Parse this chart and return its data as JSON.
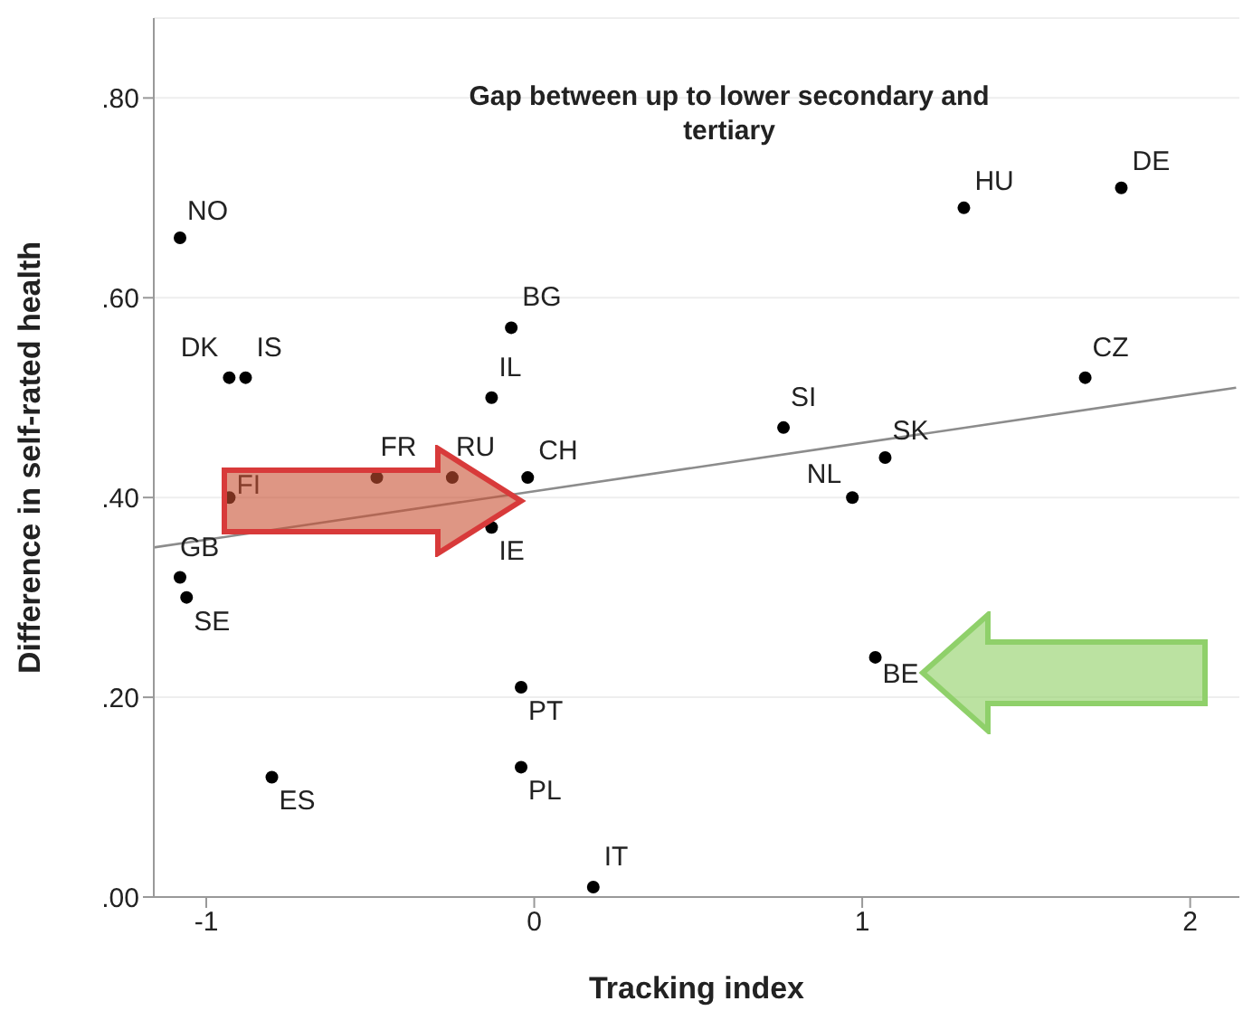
{
  "chart_data": {
    "type": "scatter",
    "title": "Gap between up to lower secondary and tertiary",
    "xlabel": "Tracking index",
    "ylabel": "Difference in self-rated health",
    "series": [
      {
        "color": "#000000",
        "x": [
          -1.08,
          -0.93,
          -0.88,
          -0.93,
          -0.48,
          -0.25,
          -0.02,
          -0.07,
          -0.13,
          -0.13,
          -1.08,
          -1.06,
          -0.04,
          -0.04,
          -0.8,
          0.18,
          1.31,
          1.79,
          1.68,
          0.76,
          1.07,
          0.97,
          1.04
        ],
        "values": [
          0.66,
          0.52,
          0.52,
          0.4,
          0.42,
          0.42,
          0.42,
          0.57,
          0.5,
          0.37,
          0.32,
          0.3,
          0.21,
          0.13,
          0.12,
          0.01,
          0.69,
          0.71,
          0.52,
          0.47,
          0.44,
          0.4,
          0.24
        ]
      },
      {
        "type": "line",
        "marker": "none",
        "color": "#8c8c8c",
        "x": [
          -1.16,
          2.14
        ],
        "values": [
          0.35,
          0.51
        ]
      }
    ],
    "annotations": [
      {
        "text": "NO",
        "x": -1.08,
        "y": 0.66
      },
      {
        "text": "DK",
        "x": -0.93,
        "y": 0.52
      },
      {
        "text": "IS",
        "x": -0.88,
        "y": 0.52
      },
      {
        "text": "FI",
        "x": -0.93,
        "y": 0.4
      },
      {
        "text": "FR",
        "x": -0.48,
        "y": 0.42
      },
      {
        "text": "RU",
        "x": -0.25,
        "y": 0.42
      },
      {
        "text": "CH",
        "x": -0.02,
        "y": 0.42
      },
      {
        "text": "BG",
        "x": -0.07,
        "y": 0.57
      },
      {
        "text": "IL",
        "x": -0.13,
        "y": 0.5
      },
      {
        "text": "IE",
        "x": -0.13,
        "y": 0.37
      },
      {
        "text": "GB",
        "x": -1.08,
        "y": 0.32
      },
      {
        "text": "SE",
        "x": -1.06,
        "y": 0.3
      },
      {
        "text": "PT",
        "x": -0.04,
        "y": 0.21
      },
      {
        "text": "PL",
        "x": -0.04,
        "y": 0.13
      },
      {
        "text": "ES",
        "x": -0.8,
        "y": 0.12
      },
      {
        "text": "IT",
        "x": 0.18,
        "y": 0.01
      },
      {
        "text": "HU",
        "x": 1.31,
        "y": 0.69
      },
      {
        "text": "DE",
        "x": 1.79,
        "y": 0.71
      },
      {
        "text": "CZ",
        "x": 1.68,
        "y": 0.52
      },
      {
        "text": "SI",
        "x": 0.76,
        "y": 0.47
      },
      {
        "text": "SK",
        "x": 1.07,
        "y": 0.44
      },
      {
        "text": "NL",
        "x": 0.97,
        "y": 0.4
      },
      {
        "text": "BE",
        "x": 1.04,
        "y": 0.24
      }
    ],
    "xlim": [
      -1.16,
      2.15
    ],
    "ylim": [
      0,
      0.88
    ],
    "xticks": [
      -1,
      0,
      1,
      2
    ],
    "yticks": [
      {
        "value": 0,
        "label": ".00"
      },
      {
        "value": 0.2,
        "label": ".20"
      },
      {
        "value": 0.4,
        "label": ".40"
      },
      {
        "value": 0.6,
        "label": ".60"
      },
      {
        "value": 0.8,
        "label": ".80"
      }
    ],
    "grid": "y",
    "marker": "circle",
    "line_style": "solid"
  }
}
